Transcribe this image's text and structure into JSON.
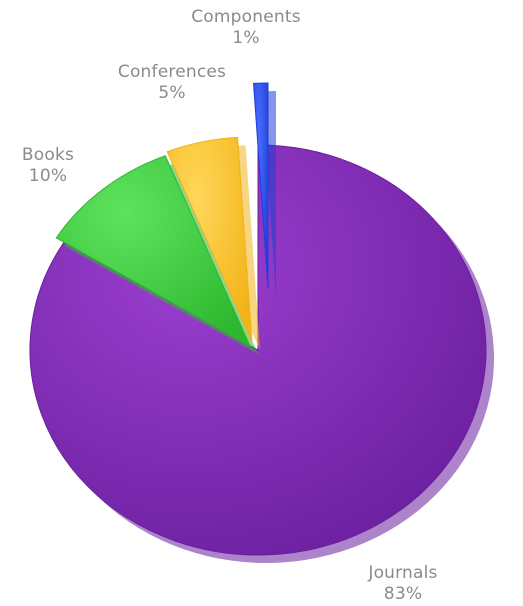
{
  "chart_data": {
    "type": "pie",
    "title": "",
    "slices": [
      {
        "label": "Journals",
        "percent_label": "83%",
        "value": 83,
        "color": "#6a1f9e",
        "highlight": "#9b3fd0"
      },
      {
        "label": "Books",
        "percent_label": "10%",
        "value": 10,
        "color": "#2fb82f",
        "highlight": "#5fe35f"
      },
      {
        "label": "Conferences",
        "percent_label": "5%",
        "value": 5,
        "color": "#f2b317",
        "highlight": "#ffd75a"
      },
      {
        "label": "Components",
        "percent_label": "1%",
        "value": 1,
        "color": "#1f3fd6",
        "highlight": "#4a6dff"
      }
    ],
    "legend": "none",
    "style": "3d-exploded"
  }
}
